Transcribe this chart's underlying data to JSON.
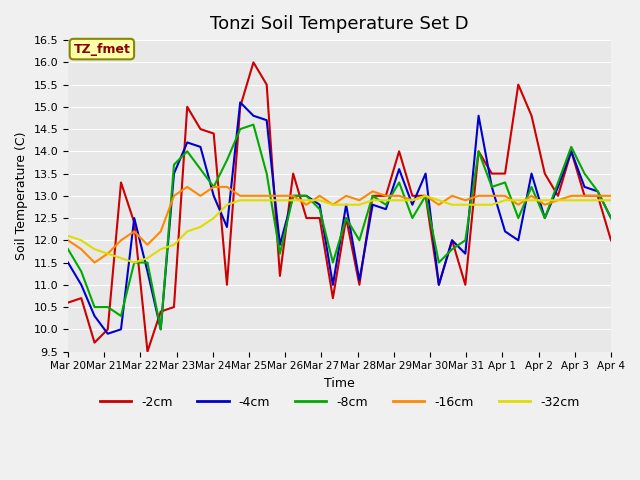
{
  "title": "Tonzi Soil Temperature Set D",
  "xlabel": "Time",
  "ylabel": "Soil Temperature (C)",
  "ylim": [
    9.5,
    16.5
  ],
  "legend_label": "TZ_fmet",
  "colors": {
    "-2cm": "#cc0000",
    "-4cm": "#0000cc",
    "-8cm": "#00aa00",
    "-16cm": "#ff8800",
    "-32cm": "#dddd00"
  },
  "bg_color": "#e8e8e8",
  "grid_color": "#ffffff",
  "x_ticks": [
    "Mar 20",
    "Mar 21",
    "Mar 22",
    "Mar 23",
    "Mar 24",
    "Mar 25",
    "Mar 26",
    "Mar 27",
    "Mar 28",
    "Mar 29",
    "Mar 30",
    "Mar 31",
    "Apr 1",
    "Apr 2",
    "Apr 3",
    "Apr 4"
  ],
  "series": {
    "-2cm": [
      10.6,
      10.7,
      9.7,
      10.0,
      13.3,
      12.4,
      9.5,
      10.4,
      10.5,
      15.0,
      14.5,
      14.4,
      11.0,
      15.0,
      16.0,
      15.5,
      11.2,
      13.5,
      12.5,
      12.5,
      10.7,
      12.5,
      11.0,
      13.0,
      13.0,
      14.0,
      13.0,
      13.0,
      11.0,
      12.0,
      11.0,
      14.0,
      13.5,
      13.5,
      15.5,
      14.8,
      13.5,
      13.0,
      14.0,
      13.0,
      13.0,
      12.0
    ],
    "-4cm": [
      11.5,
      11.0,
      10.3,
      9.9,
      10.0,
      12.5,
      11.3,
      10.0,
      13.5,
      14.2,
      14.1,
      13.0,
      12.3,
      15.1,
      14.8,
      14.7,
      11.9,
      13.0,
      13.0,
      12.8,
      11.0,
      12.8,
      11.1,
      12.8,
      12.7,
      13.6,
      12.8,
      13.5,
      11.0,
      12.0,
      11.7,
      14.8,
      13.2,
      12.2,
      12.0,
      13.5,
      12.5,
      13.2,
      14.0,
      13.2,
      13.1,
      12.5
    ],
    "-8cm": [
      11.8,
      11.3,
      10.5,
      10.5,
      10.3,
      11.5,
      11.5,
      10.0,
      13.7,
      14.0,
      13.6,
      13.2,
      13.8,
      14.5,
      14.6,
      13.5,
      11.7,
      13.0,
      13.0,
      12.7,
      11.5,
      12.5,
      12.0,
      13.0,
      12.8,
      13.3,
      12.5,
      13.0,
      11.5,
      11.8,
      12.0,
      14.0,
      13.2,
      13.3,
      12.5,
      13.2,
      12.5,
      13.3,
      14.1,
      13.5,
      13.1,
      12.5
    ],
    "-16cm": [
      12.0,
      11.8,
      11.5,
      11.7,
      12.0,
      12.2,
      11.9,
      12.2,
      13.0,
      13.2,
      13.0,
      13.2,
      13.2,
      13.0,
      13.0,
      13.0,
      13.0,
      13.0,
      12.8,
      13.0,
      12.8,
      13.0,
      12.9,
      13.1,
      13.0,
      13.0,
      12.9,
      13.0,
      12.8,
      13.0,
      12.9,
      13.0,
      13.0,
      13.0,
      12.8,
      13.0,
      12.8,
      12.9,
      13.0,
      13.0,
      13.0,
      13.0
    ],
    "-32cm": [
      12.1,
      12.0,
      11.8,
      11.7,
      11.6,
      11.5,
      11.6,
      11.8,
      11.9,
      12.2,
      12.3,
      12.5,
      12.8,
      12.9,
      12.9,
      12.9,
      12.9,
      12.9,
      12.9,
      12.9,
      12.8,
      12.8,
      12.8,
      12.9,
      12.9,
      12.9,
      12.9,
      13.0,
      12.9,
      12.8,
      12.8,
      12.8,
      12.8,
      12.9,
      12.9,
      12.9,
      12.9,
      12.9,
      12.9,
      12.9,
      12.9,
      12.9
    ]
  }
}
